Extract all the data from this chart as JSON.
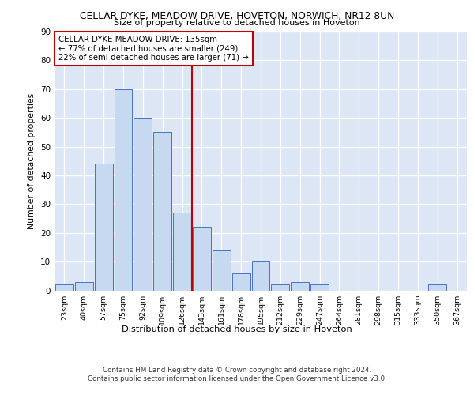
{
  "title1": "CELLAR DYKE, MEADOW DRIVE, HOVETON, NORWICH, NR12 8UN",
  "title2": "Size of property relative to detached houses in Hoveton",
  "xlabel": "Distribution of detached houses by size in Hoveton",
  "ylabel": "Number of detached properties",
  "bar_labels": [
    "23sqm",
    "40sqm",
    "57sqm",
    "75sqm",
    "92sqm",
    "109sqm",
    "126sqm",
    "143sqm",
    "161sqm",
    "178sqm",
    "195sqm",
    "212sqm",
    "229sqm",
    "247sqm",
    "264sqm",
    "281sqm",
    "298sqm",
    "315sqm",
    "333sqm",
    "350sqm",
    "367sqm"
  ],
  "bar_values": [
    2,
    3,
    44,
    70,
    60,
    55,
    27,
    22,
    14,
    6,
    10,
    2,
    3,
    2,
    0,
    0,
    0,
    0,
    0,
    2,
    0
  ],
  "bar_color": "#c6d9f0",
  "bar_edge_color": "#4472c4",
  "vline_x": 6.5,
  "vline_color": "#c00000",
  "annotation_text": "CELLAR DYKE MEADOW DRIVE: 135sqm\n← 77% of detached houses are smaller (249)\n22% of semi-detached houses are larger (71) →",
  "annotation_box_color": "#ffffff",
  "annotation_box_edge": "#c00000",
  "ylim": [
    0,
    90
  ],
  "yticks": [
    0,
    10,
    20,
    30,
    40,
    50,
    60,
    70,
    80,
    90
  ],
  "background_color": "#dce6f5",
  "footer1": "Contains HM Land Registry data © Crown copyright and database right 2024.",
  "footer2": "Contains public sector information licensed under the Open Government Licence v3.0."
}
